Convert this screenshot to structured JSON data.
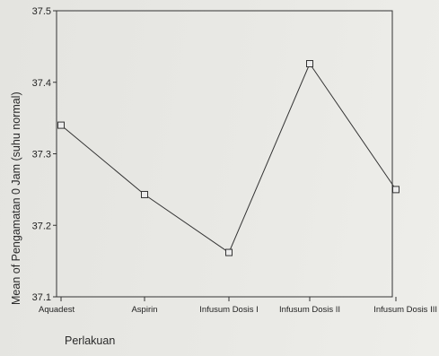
{
  "chart_data": {
    "type": "line",
    "title": "",
    "xlabel": "Perlakuan",
    "ylabel": "Mean of Pengamatan 0 Jam (suhu normal)",
    "categories": [
      "Aquadest",
      "Aspirin",
      "Infusum Dosis I",
      "Infusum Dosis II",
      "Infusum Dosis III"
    ],
    "series": [
      {
        "values": [
          37.34,
          37.243,
          37.162,
          37.426,
          37.25
        ],
        "marker": "open-square",
        "color": "#333333"
      }
    ],
    "ylim": [
      37.1,
      37.5
    ],
    "yticks": [
      "37.1",
      "37.2",
      "37.3",
      "37.4",
      "37.5"
    ],
    "grid": false,
    "legend": "none"
  }
}
